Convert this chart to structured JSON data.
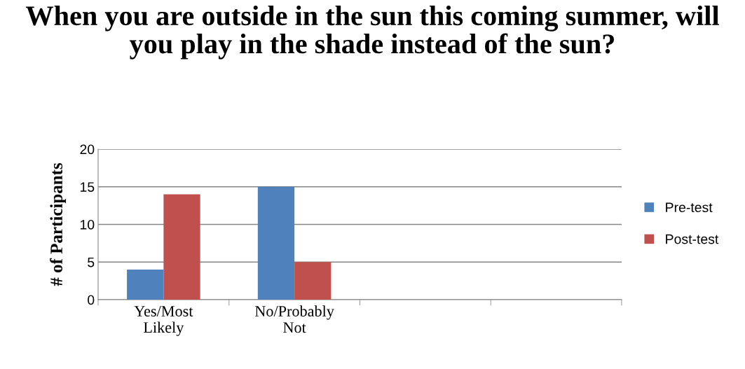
{
  "chart_data": {
    "type": "bar",
    "title": "When you are outside in the sun this coming summer, will you play in the shade instead of the sun?",
    "ylabel": "# of Participants",
    "categories": [
      "Yes/Most\nLikely",
      "No/Probably\nNot",
      null,
      null
    ],
    "series": [
      {
        "name": "Pre-test",
        "color": "#4f81bd",
        "values": [
          4,
          15,
          null,
          null
        ]
      },
      {
        "name": "Post-test",
        "color": "#c0504d",
        "values": [
          14,
          5,
          null,
          null
        ]
      }
    ],
    "ylim": [
      0,
      20
    ],
    "yticks": [
      0,
      5,
      10,
      15,
      20
    ],
    "grid": "y",
    "legend": "right"
  }
}
